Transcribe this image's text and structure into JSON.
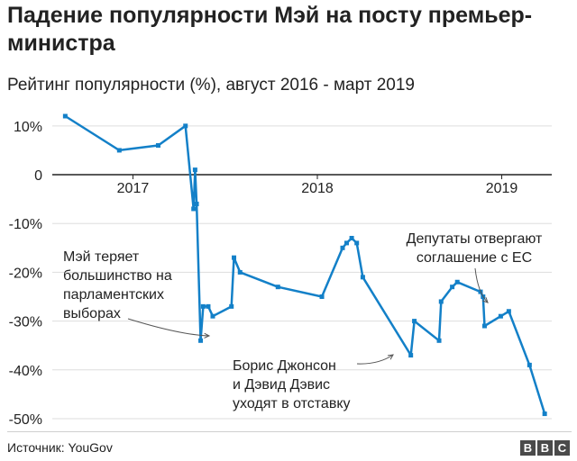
{
  "header": {
    "title": "Падение популярности Мэй на посту премьер-министра",
    "subtitle": "Рейтинг популярности (%), август 2016 - март 2019"
  },
  "footer": {
    "source": "Источник: YouGov",
    "logo_letters": [
      "B",
      "B",
      "C"
    ]
  },
  "colors": {
    "line": "#1380c8",
    "grid": "#dddddd",
    "zero": "#222222",
    "text": "#222222"
  },
  "chart_data": {
    "type": "line",
    "ylim": [
      -50,
      12
    ],
    "yticks": [
      10,
      0,
      -10,
      -20,
      -30,
      -40,
      -50
    ],
    "ytick_labels": [
      "10%",
      "0",
      "-10%",
      "-20%",
      "-30%",
      "-40%",
      "-50%"
    ],
    "xlim": [
      "2016-07-20",
      "2019-04-10"
    ],
    "x_labels": [
      {
        "date": "2017-01-01",
        "label": "2017"
      },
      {
        "date": "2018-01-01",
        "label": "2018"
      },
      {
        "date": "2019-01-01",
        "label": "2019"
      }
    ],
    "x_label_dates": [
      "2017-01-01",
      "2018-01-01",
      "2019-01-01"
    ],
    "grid": true,
    "series": [
      {
        "points": [
          [
            "2016-08-20",
            12
          ],
          [
            "2016-12-05",
            5
          ],
          [
            "2017-02-20",
            6
          ],
          [
            "2017-04-15",
            10
          ],
          [
            "2017-05-01",
            -7
          ],
          [
            "2017-05-04",
            1
          ],
          [
            "2017-05-07",
            -6
          ],
          [
            "2017-05-15",
            -34
          ],
          [
            "2017-05-20",
            -27
          ],
          [
            "2017-05-30",
            -27
          ],
          [
            "2017-06-08",
            -29
          ],
          [
            "2017-07-15",
            -27
          ],
          [
            "2017-07-20",
            -17
          ],
          [
            "2017-08-01",
            -20
          ],
          [
            "2017-10-15",
            -23
          ],
          [
            "2018-01-10",
            -25
          ],
          [
            "2018-02-20",
            -15
          ],
          [
            "2018-02-28",
            -14
          ],
          [
            "2018-03-10",
            -13
          ],
          [
            "2018-03-20",
            -14
          ],
          [
            "2018-04-01",
            -21
          ],
          [
            "2018-07-05",
            -37
          ],
          [
            "2018-07-12",
            -30
          ],
          [
            "2018-08-30",
            -34
          ],
          [
            "2018-09-03",
            -26
          ],
          [
            "2018-09-25",
            -23
          ],
          [
            "2018-10-05",
            -22
          ],
          [
            "2018-11-20",
            -24
          ],
          [
            "2018-11-25",
            -25
          ],
          [
            "2018-11-28",
            -31
          ],
          [
            "2018-12-30",
            -29
          ],
          [
            "2019-01-15",
            -28
          ],
          [
            "2019-02-25",
            -39
          ],
          [
            "2019-03-27",
            -49
          ]
        ]
      }
    ],
    "annotations": [
      {
        "lines": [
          "Мэй теряет",
          "большинство на",
          "парламентских",
          "выборах"
        ],
        "target": [
          "2017-05-15",
          -34
        ],
        "align": "start",
        "anchor": "left-middle"
      },
      {
        "lines": [
          "Депутаты отвергают",
          "соглашение с ЕС"
        ],
        "target": [
          "2019-01-15",
          -28
        ],
        "align": "middle",
        "anchor": "top-right"
      },
      {
        "lines": [
          "Борис Джонсон",
          "и Дэвид Дэвис",
          "уходят в отставку"
        ],
        "target": [
          "2018-07-05",
          -37
        ],
        "align": "start",
        "anchor": "bottom-middle"
      }
    ]
  }
}
